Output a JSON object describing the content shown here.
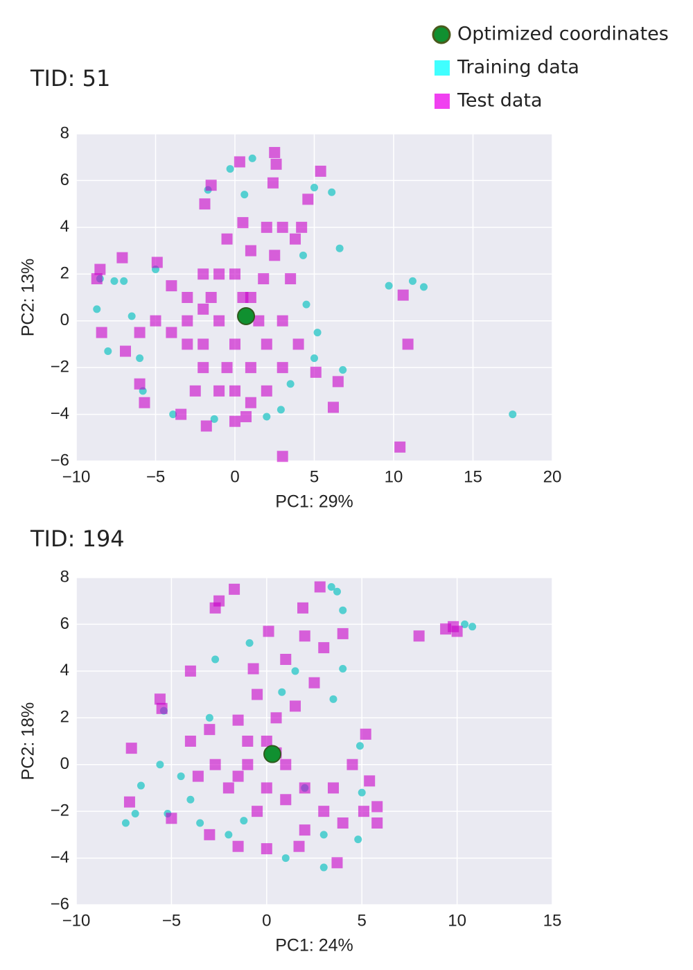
{
  "chart_data": [
    {
      "type": "scatter",
      "title": "TID: 51",
      "xlabel": "PC1: 29%",
      "ylabel": "PC2: 13%",
      "xlim": [
        -10,
        20
      ],
      "ylim": [
        -6,
        8
      ],
      "xticks": [
        {
          "value": -10,
          "label": "−10"
        },
        {
          "value": -5,
          "label": "−5"
        },
        0,
        5,
        10,
        15,
        20
      ],
      "yticks": [
        {
          "value": -6,
          "label": "−6"
        },
        {
          "value": -4,
          "label": "−4"
        },
        {
          "value": -2,
          "label": "−2"
        },
        0,
        2,
        4,
        6,
        8
      ],
      "grid": true,
      "series": [
        {
          "name": "Optimized coordinates",
          "color": "#109030",
          "marker": "big",
          "x": [
            0.7
          ],
          "values": [
            0.2
          ]
        },
        {
          "name": "Training data",
          "color": "#30c8c8",
          "marker": "circle",
          "x": [
            9.7,
            11.2,
            11.9,
            17.5,
            6.6,
            6.1,
            -8.7,
            -8.5,
            5,
            1.1,
            -0.3,
            6.8,
            5,
            -5.8,
            2,
            -1.3,
            4.3,
            -3.9,
            -6.5,
            -7,
            -5,
            3.5,
            5.2,
            0.6,
            -1.7,
            -7.6,
            -8,
            -6,
            4.5,
            2.9
          ],
          "values": [
            1.5,
            1.7,
            1.45,
            -4.0,
            3.1,
            5.5,
            0.5,
            1.8,
            5.7,
            6.95,
            6.5,
            -2.1,
            -1.6,
            -3,
            -4.1,
            -4.2,
            2.8,
            -4,
            0.2,
            1.7,
            2.2,
            -2.7,
            -0.5,
            5.4,
            5.6,
            1.7,
            -1.3,
            -1.6,
            0.7,
            -3.8
          ]
        },
        {
          "name": "Test data",
          "color": "#c800c8",
          "marker": "square",
          "x": [
            10.6,
            10.9,
            10.4,
            3,
            6.2,
            6.5,
            5.1,
            2.5,
            2.6,
            0.3,
            5.4,
            -1.5,
            -1.9,
            2.4,
            4.6,
            -7.1,
            -8.5,
            -8.7,
            -8.4,
            -6.9,
            -6.0,
            -5.7,
            -3.4,
            -1.8,
            0,
            0.7,
            -4.9,
            -4,
            -3,
            -2,
            -1,
            0,
            1,
            2,
            3,
            1,
            0,
            -1,
            1,
            2,
            3,
            0.5,
            -0.5,
            -2,
            -3,
            -2,
            -1,
            0,
            2,
            3,
            4,
            3.5,
            2.5,
            -5,
            -6,
            -4,
            -3,
            -2,
            0.5,
            1.5,
            -0.5,
            1,
            -2.5,
            -1.5,
            3.8,
            4.2,
            1.8
          ],
          "values": [
            1.1,
            -1,
            -5.4,
            -5.8,
            -3.7,
            -2.6,
            -2.2,
            7.2,
            6.7,
            6.8,
            6.4,
            5.8,
            5,
            5.9,
            5.2,
            2.7,
            2.2,
            1.8,
            -0.5,
            -1.3,
            -2.7,
            -3.5,
            -4,
            -4.5,
            -4.3,
            -4.1,
            2.5,
            1.5,
            1,
            0.5,
            0,
            -1,
            -2,
            -1,
            0,
            1,
            2,
            2,
            3,
            4,
            4,
            4.2,
            3.5,
            2,
            -1,
            -2,
            -3,
            -3,
            -3,
            -2,
            -1,
            1.8,
            2.8,
            0,
            -0.5,
            -0.5,
            0,
            -1,
            1,
            0,
            -2,
            -3.5,
            -3,
            1,
            3.5,
            4,
            1.8
          ]
        }
      ]
    },
    {
      "type": "scatter",
      "title": "TID: 194",
      "xlabel": "PC1: 24%",
      "ylabel": "PC2: 18%",
      "xlim": [
        -10,
        15
      ],
      "ylim": [
        -6,
        8
      ],
      "xticks": [
        {
          "value": -10,
          "label": "−10"
        },
        {
          "value": -5,
          "label": "−5"
        },
        0,
        5,
        10,
        15
      ],
      "yticks": [
        {
          "value": -6,
          "label": "−6"
        },
        {
          "value": -4,
          "label": "−4"
        },
        {
          "value": -2,
          "label": "−2"
        },
        0,
        2,
        4,
        6,
        8
      ],
      "grid": true,
      "series": [
        {
          "color": "#109030",
          "marker": "big",
          "x": [
            0.3
          ],
          "values": [
            0.45
          ]
        },
        {
          "color": "#30c8c8",
          "marker": "circle",
          "x": [
            10.8,
            10.4,
            -7.4,
            -6.9,
            -6.6,
            -5.6,
            -5.2,
            -2.7,
            -0.9,
            3.4,
            3.7,
            4.0,
            4.0,
            3.5,
            4.9,
            5.0,
            4.8,
            3.0,
            -1.2,
            -3.5,
            -4,
            -5.4,
            -4.5,
            0.8,
            1.5,
            -3,
            -2,
            2,
            3,
            1
          ],
          "values": [
            5.9,
            6,
            -2.5,
            -2.1,
            -0.9,
            0,
            -2.1,
            4.5,
            5.2,
            7.6,
            7.4,
            6.6,
            4.1,
            2.8,
            0.8,
            -1.2,
            -3.2,
            -4.4,
            -2.4,
            -2.5,
            -1.5,
            2.3,
            -0.5,
            3.1,
            4,
            2,
            -3,
            -1,
            -3,
            -4
          ]
        },
        {
          "color": "#c800c8",
          "marker": "square",
          "x": [
            8,
            9.4,
            9.8,
            10,
            -1.7,
            -2.5,
            -2.7,
            -4,
            -5.6,
            -5.5,
            -7.1,
            -7.2,
            -5,
            -3,
            -1.5,
            0,
            1.7,
            3.7,
            5.1,
            5.8,
            5.8,
            5.4,
            5.2,
            4,
            2.8,
            1.9,
            0.1,
            -0.7,
            -1.5,
            -2.7,
            -3.6,
            -2,
            -1,
            0,
            1,
            2,
            3,
            4,
            0.5,
            -0.5,
            1.5,
            2.5,
            3,
            1,
            -0.5,
            2,
            3.5,
            4.5,
            -4,
            -3,
            1,
            2,
            -1.5,
            0,
            0.5,
            -1
          ],
          "values": [
            5.5,
            5.8,
            5.9,
            5.7,
            7.5,
            7,
            6.7,
            4,
            2.8,
            2.4,
            0.7,
            -1.6,
            -2.3,
            -3,
            -3.5,
            -3.6,
            -3.5,
            -4.2,
            -2,
            -2.5,
            -1.8,
            -0.7,
            1.3,
            5.6,
            7.6,
            6.7,
            5.7,
            4.1,
            1.9,
            0,
            -0.5,
            -1,
            0,
            1,
            0,
            -1,
            -2,
            -2.5,
            2,
            3,
            2.5,
            3.5,
            5,
            -1.5,
            -2,
            -2.8,
            -1,
            0,
            1,
            1.5,
            4.5,
            5.5,
            -0.5,
            -1,
            0.5,
            1
          ]
        }
      ]
    }
  ]
}
